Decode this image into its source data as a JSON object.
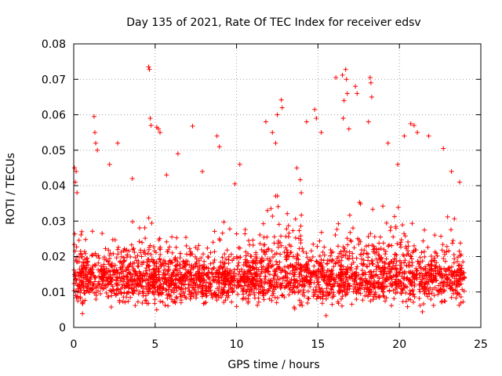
{
  "chart_data": {
    "type": "scatter",
    "title": "Day 135 of 2021, Rate Of TEC Index for receiver edsv",
    "xlabel": "GPS time / hours",
    "ylabel": "ROTI / TECUs",
    "xlim": [
      0,
      25
    ],
    "ylim": [
      0,
      0.08
    ],
    "xticks": [
      0,
      5,
      10,
      15,
      20,
      25
    ],
    "xtick_labels": [
      "0",
      "5",
      "10",
      "15",
      "20",
      "25"
    ],
    "yticks": [
      0,
      0.01,
      0.02,
      0.03,
      0.04,
      0.05,
      0.06,
      0.07,
      0.08
    ],
    "ytick_labels": [
      "0",
      "0.01",
      "0.02",
      "0.03",
      "0.04",
      "0.05",
      "0.06",
      "0.07",
      "0.08"
    ],
    "grid": true,
    "marker": "+",
    "series": [
      {
        "name": "ROTI",
        "color": "#ff0000",
        "marker": "+",
        "points": [
          [
            0.05,
            0.045
          ],
          [
            0.1,
            0.041
          ],
          [
            0.15,
            0.044
          ],
          [
            0.2,
            0.038
          ],
          [
            4.6,
            0.0735
          ],
          [
            4.65,
            0.0728
          ],
          [
            4.7,
            0.059
          ],
          [
            4.75,
            0.057
          ],
          [
            5.1,
            0.0565
          ],
          [
            5.2,
            0.056
          ],
          [
            5.3,
            0.055
          ],
          [
            1.25,
            0.0595
          ],
          [
            1.3,
            0.055
          ],
          [
            1.35,
            0.052
          ],
          [
            1.45,
            0.05
          ],
          [
            7.3,
            0.0568
          ],
          [
            2.7,
            0.052
          ],
          [
            2.2,
            0.046
          ],
          [
            6.4,
            0.049
          ],
          [
            8.8,
            0.054
          ],
          [
            8.95,
            0.051
          ],
          [
            11.8,
            0.058
          ],
          [
            12.2,
            0.055
          ],
          [
            12.4,
            0.052
          ],
          [
            12.75,
            0.0642
          ],
          [
            12.8,
            0.062
          ],
          [
            12.5,
            0.06
          ],
          [
            14.3,
            0.058
          ],
          [
            14.8,
            0.0615
          ],
          [
            14.9,
            0.059
          ],
          [
            15.2,
            0.055
          ],
          [
            16.1,
            0.0705
          ],
          [
            16.5,
            0.0712
          ],
          [
            16.7,
            0.0728
          ],
          [
            16.75,
            0.07
          ],
          [
            16.8,
            0.066
          ],
          [
            16.6,
            0.064
          ],
          [
            16.55,
            0.059
          ],
          [
            16.9,
            0.056
          ],
          [
            17.3,
            0.068
          ],
          [
            17.4,
            0.066
          ],
          [
            18.2,
            0.0705
          ],
          [
            18.25,
            0.069
          ],
          [
            18.3,
            0.065
          ],
          [
            18.1,
            0.058
          ],
          [
            19.3,
            0.052
          ],
          [
            20.3,
            0.054
          ],
          [
            20.7,
            0.0575
          ],
          [
            20.9,
            0.057
          ],
          [
            21.1,
            0.055
          ],
          [
            22.7,
            0.0505
          ],
          [
            21.8,
            0.054
          ],
          [
            23.2,
            0.044
          ],
          [
            23.7,
            0.041
          ],
          [
            9.9,
            0.0405
          ],
          [
            10.2,
            0.046
          ],
          [
            3.6,
            0.042
          ],
          [
            5.7,
            0.043
          ],
          [
            7.9,
            0.044
          ],
          [
            13.7,
            0.045
          ],
          [
            19.9,
            0.046
          ]
        ]
      }
    ],
    "generated_cloud": {
      "description": "dense band of ROTI values between ~0.004 and ~0.035 across 0-24 h",
      "x_range": [
        0,
        24
      ],
      "baseline": 0.013,
      "min": 0.003,
      "count": 9000
    }
  }
}
